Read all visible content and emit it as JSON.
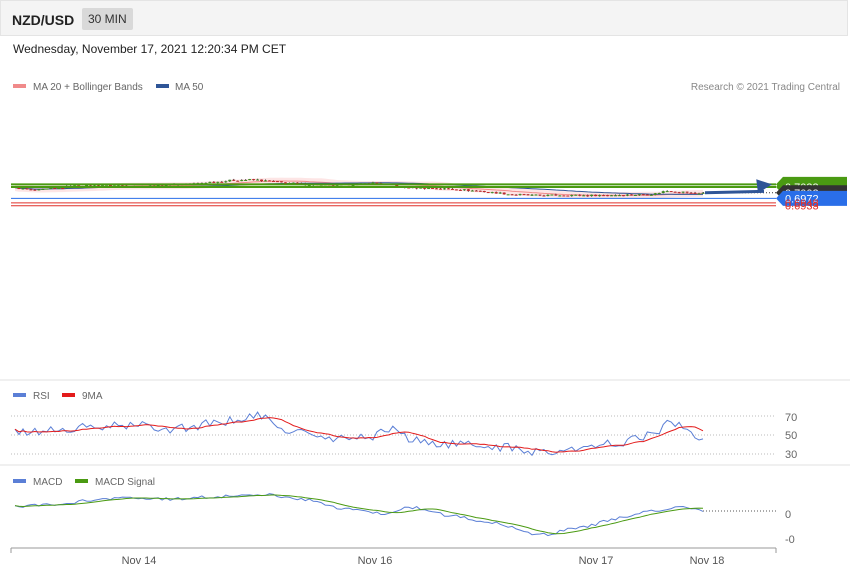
{
  "header": {
    "symbol": "NZD/USD",
    "timeframe": "30 MIN",
    "datetime": "Wednesday, November 17, 2021 12:20:34 PM CET",
    "credit": "Research © 2021 Trading Central"
  },
  "chart_data": [
    {
      "type": "candlestick",
      "panel": "price",
      "legend": [
        {
          "name": "MA 20 + Bollinger Bands",
          "color": "#f08a8a"
        },
        {
          "name": "MA 50",
          "color": "#2f5597"
        }
      ],
      "legend_position": "top-left",
      "last_price": 0.7002,
      "levels": [
        {
          "label": "0.7047",
          "value": 0.7047,
          "type": "resistance",
          "color": "#4a9a12"
        },
        {
          "label": "0.7033",
          "value": 0.7033,
          "type": "resistance",
          "color": "#4a9a12"
        },
        {
          "label": "0.7002",
          "value": 0.7002,
          "type": "last",
          "color": "#333333"
        },
        {
          "label": "0.6972",
          "value": 0.6972,
          "type": "support",
          "color": "#2a6ee8"
        },
        {
          "label": "0.6948",
          "value": 0.6948,
          "type": "support",
          "color": "#e0302a"
        },
        {
          "label": "0.6933",
          "value": 0.6933,
          "type": "support",
          "color": "#e0302a"
        }
      ],
      "forecast_arrow": {
        "from": 0.7002,
        "to": 0.7047,
        "color": "#2f5597"
      },
      "close_anchors": [
        [
          0,
          0.7027
        ],
        [
          5,
          0.7015
        ],
        [
          10,
          0.7025
        ],
        [
          15,
          0.7038
        ],
        [
          20,
          0.7043
        ],
        [
          26,
          0.704
        ],
        [
          32,
          0.7035
        ],
        [
          38,
          0.7045
        ],
        [
          44,
          0.705
        ],
        [
          50,
          0.706
        ],
        [
          56,
          0.707
        ],
        [
          60,
          0.7072
        ],
        [
          64,
          0.7064
        ],
        [
          68,
          0.7055
        ],
        [
          74,
          0.7046
        ],
        [
          80,
          0.7041
        ],
        [
          86,
          0.7047
        ],
        [
          90,
          0.7055
        ],
        [
          94,
          0.7045
        ],
        [
          98,
          0.703
        ],
        [
          104,
          0.7027
        ],
        [
          110,
          0.7022
        ],
        [
          116,
          0.7013
        ],
        [
          120,
          0.7003
        ],
        [
          126,
          0.6992
        ],
        [
          132,
          0.6988
        ],
        [
          138,
          0.699
        ],
        [
          144,
          0.6988
        ],
        [
          150,
          0.699
        ],
        [
          156,
          0.6992
        ],
        [
          160,
          0.6995
        ],
        [
          164,
          0.7012
        ],
        [
          168,
          0.7006
        ],
        [
          171,
          0.6998
        ],
        [
          173,
          0.7002
        ]
      ],
      "x_labels": [
        "Nov 14",
        "Nov 16",
        "Nov 17",
        "Nov 18"
      ]
    },
    {
      "type": "line",
      "panel": "rsi",
      "legend": [
        {
          "name": "RSI",
          "color": "#5b7fd6"
        },
        {
          "name": "9MA",
          "color": "#e31b1b"
        }
      ],
      "yticks": [
        "70",
        "50",
        "30"
      ],
      "ylim": [
        20,
        80
      ],
      "anchors": [
        [
          0,
          52
        ],
        [
          10,
          55
        ],
        [
          20,
          58
        ],
        [
          30,
          60
        ],
        [
          40,
          57
        ],
        [
          50,
          62
        ],
        [
          60,
          70
        ],
        [
          70,
          54
        ],
        [
          80,
          45
        ],
        [
          90,
          49
        ],
        [
          95,
          58
        ],
        [
          100,
          44
        ],
        [
          110,
          40
        ],
        [
          120,
          38
        ],
        [
          130,
          33
        ],
        [
          140,
          34
        ],
        [
          150,
          41
        ],
        [
          160,
          50
        ],
        [
          165,
          63
        ],
        [
          170,
          52
        ],
        [
          173,
          48
        ]
      ]
    },
    {
      "type": "line",
      "panel": "macd",
      "legend": [
        {
          "name": "MACD",
          "color": "#5b7fd6"
        },
        {
          "name": "MACD Signal",
          "color": "#4a9a12"
        }
      ],
      "yticks": [
        "0",
        "-0"
      ],
      "anchors": [
        [
          0,
          0.4
        ],
        [
          10,
          0.5
        ],
        [
          20,
          0.9
        ],
        [
          30,
          1.1
        ],
        [
          40,
          1.0
        ],
        [
          50,
          1.2
        ],
        [
          62,
          1.4
        ],
        [
          72,
          1.0
        ],
        [
          82,
          0.2
        ],
        [
          92,
          -0.2
        ],
        [
          100,
          0.3
        ],
        [
          110,
          -0.4
        ],
        [
          120,
          -1.0
        ],
        [
          132,
          -2.0
        ],
        [
          142,
          -1.4
        ],
        [
          152,
          -0.6
        ],
        [
          162,
          0.1
        ],
        [
          168,
          0.4
        ],
        [
          173,
          0.0
        ]
      ]
    }
  ]
}
